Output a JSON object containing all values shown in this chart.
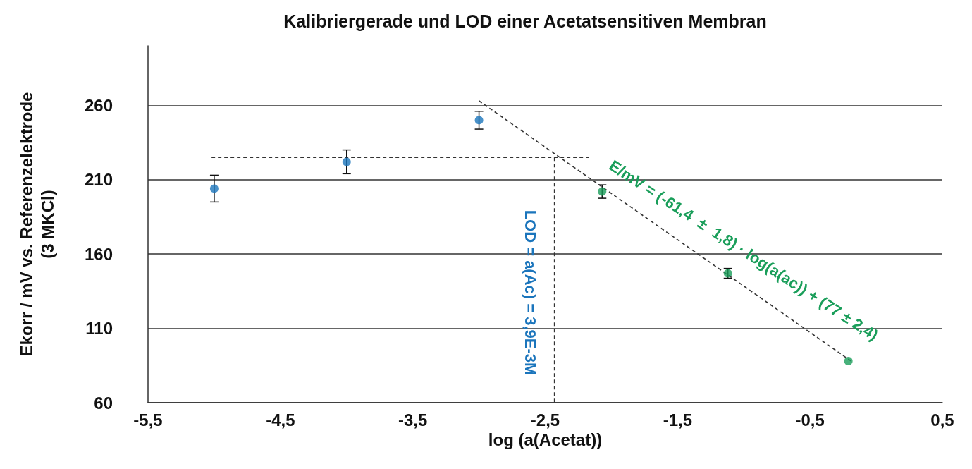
{
  "chart_data": {
    "type": "scatter",
    "title": "Kalibriergerade und LOD einer Acetatsensitiven Membran",
    "xlabel": "log (a(Acetat))",
    "ylabel": "Ekorr / mV vs. Referenzelektrode\n(3 MKCl)",
    "xlim": [
      -5.5,
      0.5
    ],
    "xticks": [
      {
        "value": -5.5,
        "label": "-5,5"
      },
      {
        "value": -4.5,
        "label": "-4,5"
      },
      {
        "value": -3.5,
        "label": "-3,5"
      },
      {
        "value": -2.5,
        "label": "-2,5"
      },
      {
        "value": -1.5,
        "label": "-1,5"
      },
      {
        "value": -0.5,
        "label": "-0,5"
      },
      {
        "value": 0.5,
        "label": "0,5"
      }
    ],
    "ylim": [
      60,
      300
    ],
    "yticks": [
      60,
      110,
      160,
      210,
      260
    ],
    "grid": "y",
    "marker": "circle",
    "series": [
      {
        "color": "#1b75bc",
        "x": [
          -5.0,
          -4.0,
          -3.0
        ],
        "values": [
          204,
          222,
          250
        ],
        "errors": [
          9,
          8,
          6
        ]
      },
      {
        "color": "#1a9e5a",
        "x": [
          -2.07,
          -1.12,
          -0.21
        ],
        "values": [
          202,
          147,
          88
        ],
        "errors": [
          4.5,
          3.3,
          null
        ]
      },
      {
        "type": "line",
        "color": "#333333",
        "line_style": "dashed",
        "marker": "none",
        "x": [
          -3.0,
          -0.19
        ],
        "values": [
          263,
          88
        ]
      },
      {
        "type": "line",
        "color": "#333333",
        "line_style": "dashed",
        "marker": "none",
        "x": [
          -5.02,
          -2.17
        ],
        "values": [
          225,
          225
        ]
      },
      {
        "type": "line",
        "color": "#333333",
        "line_style": "dashed",
        "marker": "none",
        "x": [
          -2.43,
          -2.43
        ],
        "values": [
          225,
          60
        ]
      }
    ],
    "annotations": [
      "LOD = a(Ac) = 3,9E-3M",
      "E/mV = (-61,4  ±  1,8) · log(a(ac)) + (77 ± 2,4)"
    ]
  }
}
